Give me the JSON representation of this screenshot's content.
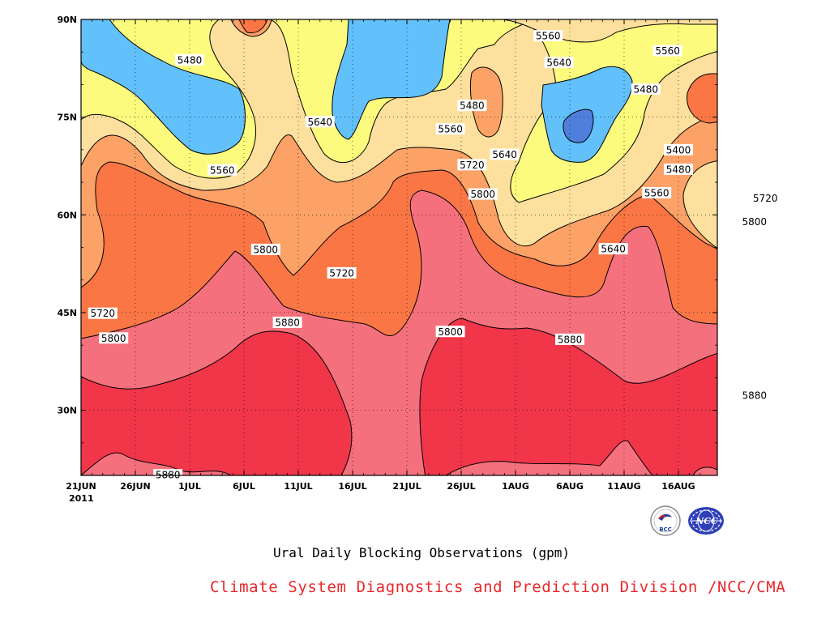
{
  "chart_data": {
    "type": "contour",
    "title": "Ural Daily Blocking Observations (gpm)",
    "credit": "Climate System Diagnostics and Prediction Division /NCC/CMA",
    "x_axis": {
      "ticks": [
        "21JUN",
        "26JUN",
        "1JUL",
        "6JUL",
        "11JUL",
        "16JUL",
        "21JUL",
        "26JUL",
        "1AUG",
        "6AUG",
        "11AUG",
        "16AUG"
      ],
      "year_label": "2011",
      "range_days": [
        0,
        58
      ]
    },
    "y_axis": {
      "ticks": [
        "30N",
        "45N",
        "60N",
        "75N",
        "90N"
      ],
      "range": [
        20,
        90
      ]
    },
    "contour_interval_gpm": 80,
    "contour_levels": [
      5400,
      5480,
      5560,
      5640,
      5720,
      5800,
      5880
    ],
    "fill_colors": {
      "5320": "#4f7fdc",
      "5400": "#62c0fb",
      "5480": "#fdfb7d",
      "5560": "#fde09d",
      "5640": "#fca267",
      "5720": "#fa7645",
      "5800": "#f5707d",
      "5880": "#f1364a"
    },
    "contour_labels": [
      {
        "text": "5480",
        "day": 10,
        "lat": 83.8
      },
      {
        "text": "5560",
        "day": 43,
        "lat": 87.5
      },
      {
        "text": "5560",
        "day": 54,
        "lat": 85.2
      },
      {
        "text": "5640",
        "day": 44,
        "lat": 83.4
      },
      {
        "text": "5480",
        "day": 52,
        "lat": 79.3
      },
      {
        "text": "5480",
        "day": 36,
        "lat": 76.8
      },
      {
        "text": "5640",
        "day": 22,
        "lat": 74.3
      },
      {
        "text": "5560",
        "day": 34,
        "lat": 73.2
      },
      {
        "text": "5400",
        "day": 55,
        "lat": 70.0
      },
      {
        "text": "5560",
        "day": 13,
        "lat": 66.9
      },
      {
        "text": "5640",
        "day": 39,
        "lat": 69.3
      },
      {
        "text": "5480",
        "day": 55,
        "lat": 67.0
      },
      {
        "text": "5720",
        "day": 36,
        "lat": 67.7
      },
      {
        "text": "5560",
        "day": 53,
        "lat": 63.4
      },
      {
        "text": "5800",
        "day": 37,
        "lat": 63.2
      },
      {
        "text": "5720",
        "day": 63,
        "lat": 62.6
      },
      {
        "text": "5800",
        "day": 62,
        "lat": 59.0
      },
      {
        "text": "5800",
        "day": 17,
        "lat": 54.7
      },
      {
        "text": "5640",
        "day": 49,
        "lat": 54.8
      },
      {
        "text": "5720",
        "day": 24,
        "lat": 51.1
      },
      {
        "text": "5720",
        "day": 2,
        "lat": 44.9
      },
      {
        "text": "5880",
        "day": 19,
        "lat": 43.5
      },
      {
        "text": "5800",
        "day": 34,
        "lat": 42.1
      },
      {
        "text": "5800",
        "day": 3,
        "lat": 41.1
      },
      {
        "text": "5880",
        "day": 45,
        "lat": 40.9
      },
      {
        "text": "5880",
        "day": 62,
        "lat": 32.3
      },
      {
        "text": "5880",
        "day": 8,
        "lat": 20.1
      }
    ],
    "grid": "dotted",
    "legend": "none"
  },
  "logos": {
    "left": {
      "text": "BCC",
      "icon": "bcc-logo-icon"
    },
    "right": {
      "text": "NCC",
      "icon": "ncc-logo-icon"
    }
  }
}
